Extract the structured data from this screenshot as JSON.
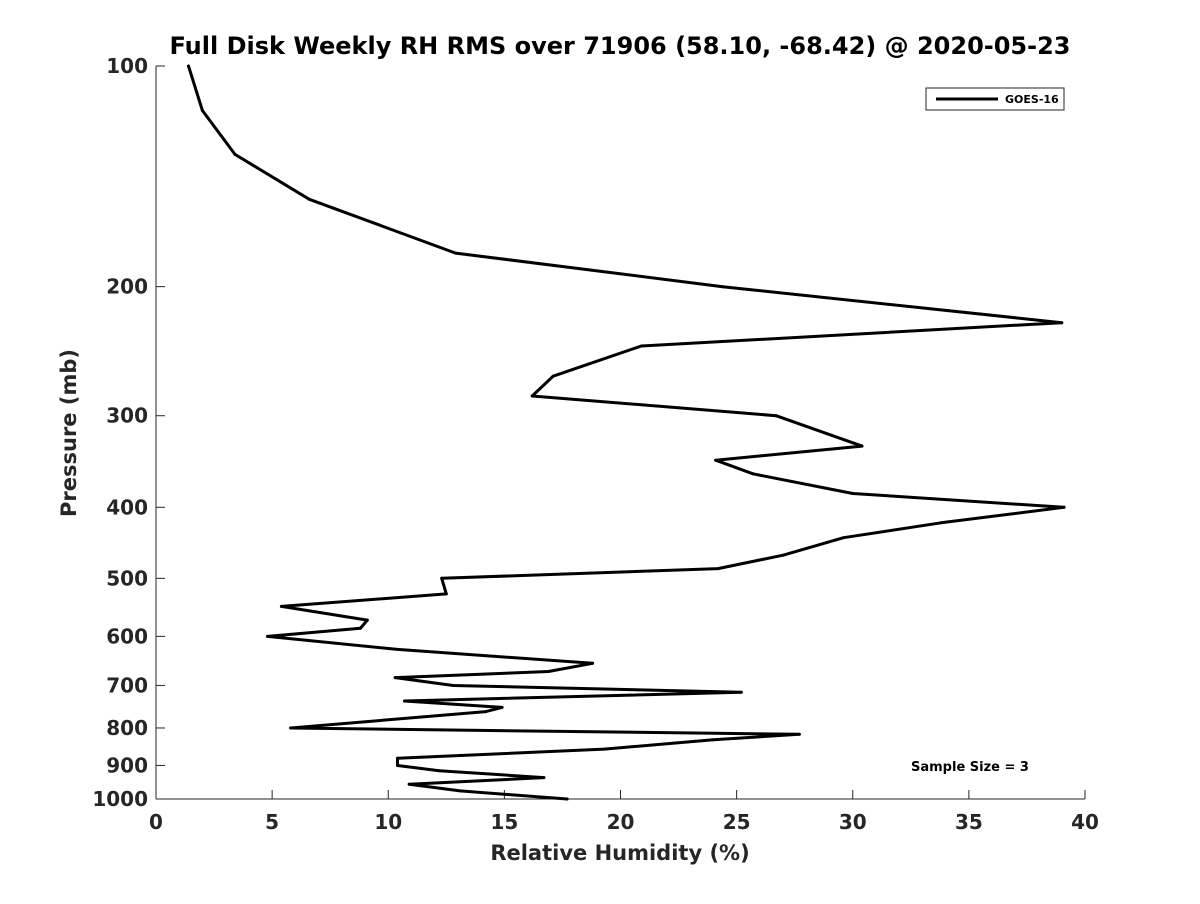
{
  "chart_data": {
    "type": "line",
    "title": "Full Disk Weekly RH RMS over 71906 (58.10, -68.42) @ 2020-05-23",
    "xlabel": "Relative Humidity (%)",
    "ylabel": "Pressure (mb)",
    "xlim": [
      0,
      40
    ],
    "ylim": [
      100,
      1000
    ],
    "yscale": "log",
    "y_reversed": true,
    "xticks": [
      0,
      5,
      10,
      15,
      20,
      25,
      30,
      35,
      40
    ],
    "yticks": [
      100,
      200,
      300,
      400,
      500,
      600,
      700,
      800,
      900,
      1000
    ],
    "grid": false,
    "legend_position": "top-right",
    "annotation": "Sample Size = 3",
    "series": [
      {
        "name": "GOES-16",
        "color": "#000000",
        "x": [
          1.4,
          2.0,
          3.4,
          6.6,
          12.9,
          24.4,
          39.0,
          20.9,
          17.1,
          16.2,
          26.7,
          30.4,
          24.1,
          25.7,
          30.0,
          39.1,
          33.8,
          29.6,
          27.0,
          24.2,
          12.3,
          12.5,
          5.4,
          9.1,
          8.8,
          4.8,
          10.4,
          18.8,
          16.9,
          10.3,
          12.8,
          25.2,
          10.7,
          14.9,
          14.2,
          5.8,
          27.7,
          24.0,
          19.3,
          10.4,
          10.4,
          12.2,
          16.7,
          10.9,
          13.1,
          17.7
        ],
        "y": [
          100,
          115,
          132,
          152,
          180,
          200,
          224,
          241,
          265,
          282,
          300,
          330,
          345,
          360,
          383,
          400,
          420,
          440,
          465,
          485,
          500,
          525,
          546,
          570,
          585,
          600,
          625,
          653,
          670,
          683,
          700,
          715,
          735,
          750,
          760,
          800,
          816,
          830,
          855,
          880,
          900,
          915,
          935,
          955,
          975,
          1000
        ]
      }
    ]
  }
}
